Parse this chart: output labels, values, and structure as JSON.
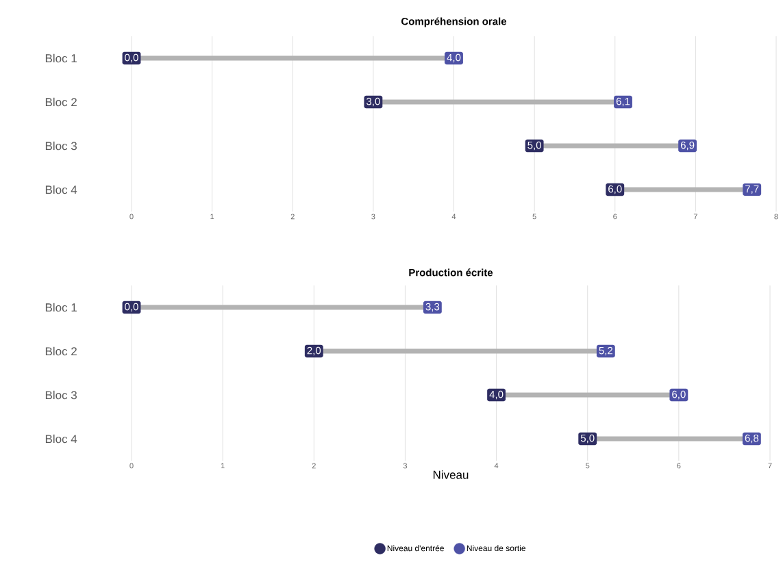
{
  "chart_data": [
    {
      "type": "scatter",
      "orientation": "horizontal",
      "title": "Compréhension orale",
      "categories": [
        "Bloc 1",
        "Bloc 2",
        "Bloc 3",
        "Bloc 4"
      ],
      "xlim": [
        0,
        8
      ],
      "xticks": [
        0,
        1,
        2,
        3,
        4,
        5,
        6,
        7,
        8
      ],
      "grid": "x",
      "series": [
        {
          "color": "#2e2d62",
          "values": [
            0,
            3,
            5,
            6
          ],
          "value_labels": [
            "0,0",
            "3,0",
            "5,0",
            "6,0"
          ]
        },
        {
          "color": "#4e52a6",
          "values": [
            4,
            6.1,
            6.9,
            7.7
          ],
          "value_labels": [
            "4,0",
            "6,1",
            "6,9",
            "7,7"
          ]
        }
      ]
    },
    {
      "type": "scatter",
      "orientation": "horizontal",
      "title": "Production écrite",
      "xlabel": "Niveau",
      "categories": [
        "Bloc 1",
        "Bloc 2",
        "Bloc 3",
        "Bloc 4"
      ],
      "xlim": [
        0,
        7
      ],
      "xticks": [
        0,
        1,
        2,
        3,
        4,
        5,
        6,
        7
      ],
      "grid": "x",
      "legend": "bottom",
      "series": [
        {
          "name": "Niveau d'entrée",
          "color": "#2e2d62",
          "values": [
            0,
            2,
            4,
            5
          ],
          "value_labels": [
            "0,0",
            "2,0",
            "4,0",
            "5,0"
          ]
        },
        {
          "name": "Niveau de sortie",
          "color": "#4e52a6",
          "values": [
            3.3,
            5.2,
            6,
            6.8
          ],
          "value_labels": [
            "3,3",
            "5,2",
            "6,0",
            "6,8"
          ]
        }
      ]
    }
  ]
}
